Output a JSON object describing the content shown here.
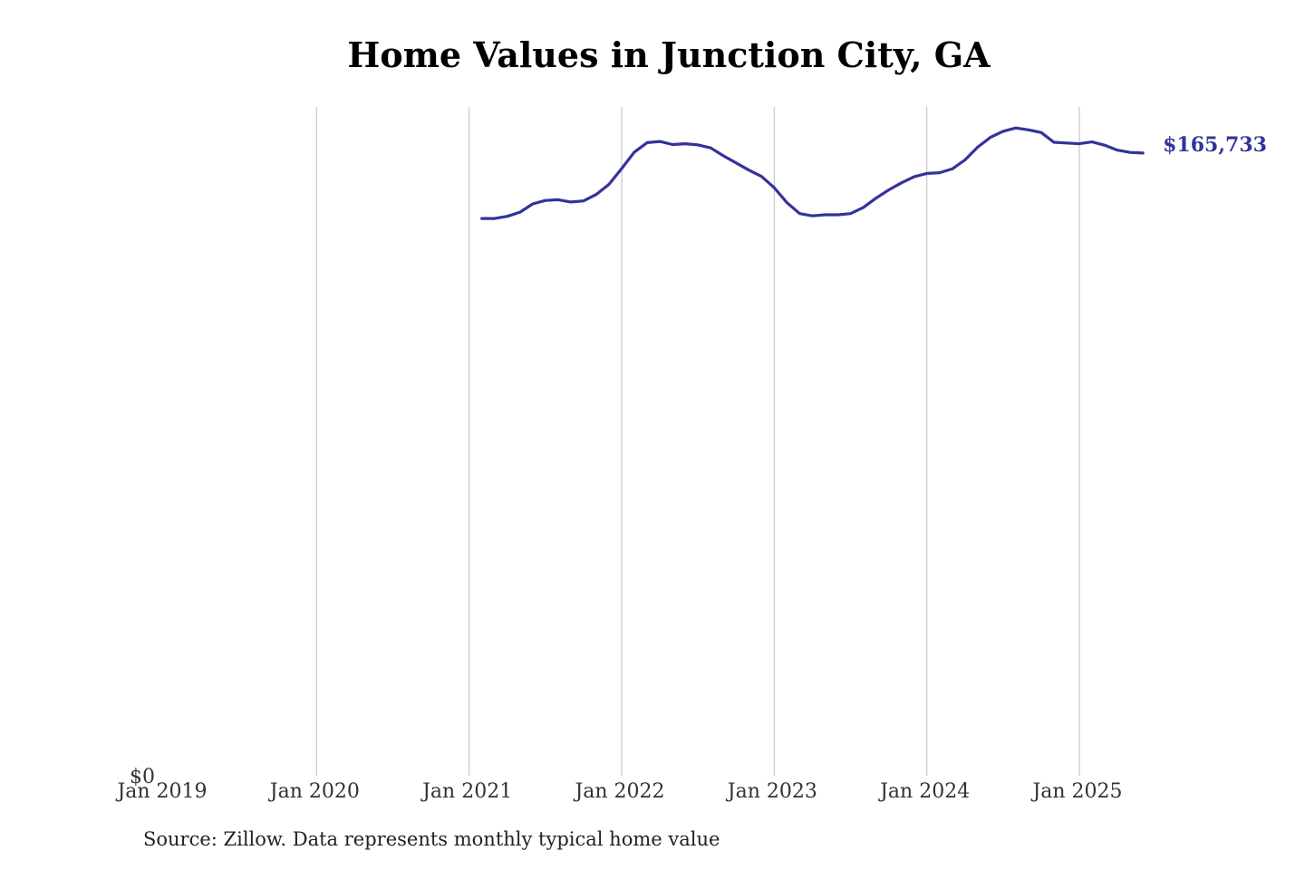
{
  "chart_data": {
    "type": "line",
    "title": "Home Values in Junction City, GA",
    "source": "Source: Zillow. Data represents monthly typical home value",
    "x_ticks": [
      "Jan 2019",
      "Jan 2020",
      "Jan 2021",
      "Jan 2022",
      "Jan 2023",
      "Jan 2024",
      "Jan 2025"
    ],
    "y_ticks": [
      "$0"
    ],
    "xlim": [
      "2019-01",
      "2025-07"
    ],
    "ylim": [
      0,
      178000
    ],
    "grid": "vertical",
    "line_color": "#33339a",
    "end_label": "$165,733",
    "series": [
      {
        "x": [
          "2021-02",
          "2021-03",
          "2021-04",
          "2021-05",
          "2021-06",
          "2021-07",
          "2021-08",
          "2021-09",
          "2021-10",
          "2021-11",
          "2021-12",
          "2022-01",
          "2022-02",
          "2022-03",
          "2022-04",
          "2022-05",
          "2022-06",
          "2022-07",
          "2022-08",
          "2022-09",
          "2022-10",
          "2022-11",
          "2022-12",
          "2023-01",
          "2023-02",
          "2023-03",
          "2023-04",
          "2023-05",
          "2023-06",
          "2023-07",
          "2023-08",
          "2023-09",
          "2023-10",
          "2023-11",
          "2023-12",
          "2024-01",
          "2024-02",
          "2024-03",
          "2024-04",
          "2024-05",
          "2024-06",
          "2024-07",
          "2024-08",
          "2024-09",
          "2024-10",
          "2024-11",
          "2024-12",
          "2025-01",
          "2025-02",
          "2025-03",
          "2025-04",
          "2025-05",
          "2025-06"
        ],
        "values": [
          148300,
          148300,
          148900,
          150000,
          152200,
          153100,
          153300,
          152700,
          153000,
          154700,
          157400,
          161600,
          166000,
          168500,
          168800,
          168000,
          168200,
          167900,
          167100,
          165000,
          163100,
          161200,
          159500,
          156500,
          152500,
          149600,
          149000,
          149300,
          149300,
          149600,
          151200,
          153700,
          155900,
          157800,
          159400,
          160300,
          160500,
          161500,
          163900,
          167300,
          169900,
          171500,
          172400,
          171900,
          171200,
          168600,
          168400,
          168200,
          168700,
          167800,
          166500,
          165900,
          165733
        ]
      }
    ]
  }
}
